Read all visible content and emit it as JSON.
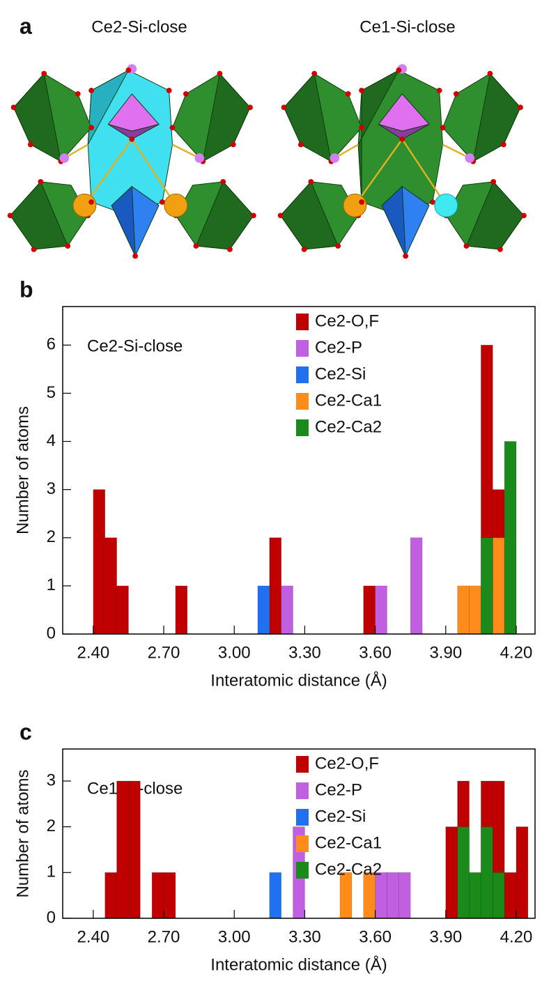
{
  "panel_a": {
    "label": "a",
    "titles": [
      "Ce2-Si-close",
      "Ce1-Si-close"
    ]
  },
  "chart_data": [
    {
      "type": "histogram",
      "panel_label": "b",
      "annotation": "Ce2-Si-close",
      "xlabel": "Interatomic distance (Å)",
      "ylabel": "Number of atoms",
      "bins": [
        2.35,
        2.4,
        2.45,
        2.5,
        2.55,
        2.6,
        2.65,
        2.7,
        2.75,
        2.8,
        2.85,
        2.9,
        2.95,
        3.0,
        3.05,
        3.1,
        3.15,
        3.2,
        3.25,
        3.3,
        3.35,
        3.4,
        3.45,
        3.5,
        3.55,
        3.6,
        3.65,
        3.7,
        3.75,
        3.8,
        3.85,
        3.9,
        3.95,
        4.0,
        4.05,
        4.1,
        4.15,
        4.2,
        4.25
      ],
      "series": [
        {
          "name": "Ce2-O,F",
          "color": "#c00000",
          "values": [
            0,
            3,
            2,
            1,
            0,
            0,
            0,
            0,
            1,
            0,
            0,
            0,
            0,
            0,
            0,
            0,
            2,
            0,
            0,
            0,
            0,
            0,
            0,
            0,
            1,
            0,
            0,
            0,
            0,
            0,
            0,
            0,
            0,
            0,
            6,
            3,
            0,
            0
          ]
        },
        {
          "name": "Ce2-P",
          "color": "#c060e0",
          "values": [
            0,
            0,
            0,
            0,
            0,
            0,
            0,
            0,
            0,
            0,
            0,
            0,
            0,
            0,
            0,
            0,
            0,
            1,
            0,
            0,
            0,
            0,
            0,
            0,
            0,
            1,
            0,
            0,
            2,
            0,
            0,
            0,
            0,
            0,
            0,
            0,
            0,
            0
          ]
        },
        {
          "name": "Ce2-Si",
          "color": "#2070f0",
          "values": [
            0,
            0,
            0,
            0,
            0,
            0,
            0,
            0,
            0,
            0,
            0,
            0,
            0,
            0,
            0,
            1,
            0,
            0,
            0,
            0,
            0,
            0,
            0,
            0,
            0,
            0,
            0,
            0,
            0,
            0,
            0,
            0,
            0,
            0,
            0,
            0,
            0,
            0
          ]
        },
        {
          "name": "Ce2-Ca1",
          "color": "#ff8c1a",
          "values": [
            0,
            0,
            0,
            0,
            0,
            0,
            0,
            0,
            0,
            0,
            0,
            0,
            0,
            0,
            0,
            0,
            0,
            0,
            0,
            0,
            0,
            0,
            0,
            0,
            0,
            0,
            0,
            0,
            0,
            0,
            0,
            0,
            1,
            1,
            0,
            2,
            0,
            0
          ]
        },
        {
          "name": "Ce2-Ca2",
          "color": "#1a8a1a",
          "values": [
            0,
            0,
            0,
            0,
            0,
            0,
            0,
            0,
            0,
            0,
            0,
            0,
            0,
            0,
            0,
            0,
            0,
            0,
            0,
            0,
            0,
            0,
            0,
            0,
            0,
            0,
            0,
            0,
            0,
            0,
            0,
            0,
            0,
            0,
            2,
            0,
            4,
            0
          ]
        }
      ],
      "xlim": [
        2.27,
        4.28
      ],
      "ylim": [
        0,
        6.8
      ],
      "xticks": [
        {
          "value": 2.4,
          "label": "2.40"
        },
        {
          "value": 2.7,
          "label": "2.70"
        },
        {
          "value": 3.0,
          "label": "3.00"
        },
        {
          "value": 3.3,
          "label": "3.30"
        },
        {
          "value": 3.6,
          "label": "3.60"
        },
        {
          "value": 3.9,
          "label": "3.90"
        },
        {
          "value": 4.2,
          "label": "4.20"
        }
      ],
      "yticks": [
        0,
        1,
        2,
        3,
        4,
        5,
        6
      ],
      "legend": "upper center"
    },
    {
      "type": "histogram",
      "panel_label": "c",
      "annotation": "Ce1-Si-close",
      "xlabel": "Interatomic distance (Å)",
      "ylabel": "Number of atoms",
      "bins": [
        2.35,
        2.4,
        2.45,
        2.5,
        2.55,
        2.6,
        2.65,
        2.7,
        2.75,
        2.8,
        2.85,
        2.9,
        2.95,
        3.0,
        3.05,
        3.1,
        3.15,
        3.2,
        3.25,
        3.3,
        3.35,
        3.4,
        3.45,
        3.5,
        3.55,
        3.6,
        3.65,
        3.7,
        3.75,
        3.8,
        3.85,
        3.9,
        3.95,
        4.0,
        4.05,
        4.1,
        4.15,
        4.2,
        4.25
      ],
      "series": [
        {
          "name": "Ce2-O,F",
          "color": "#c00000",
          "values": [
            0,
            0,
            1,
            3,
            3,
            0,
            1,
            1,
            0,
            0,
            0,
            0,
            0,
            0,
            0,
            0,
            0,
            0,
            0,
            0,
            0,
            0,
            0,
            0,
            0,
            0,
            0,
            0,
            0,
            0,
            0,
            2,
            3,
            0,
            3,
            3,
            1,
            2
          ]
        },
        {
          "name": "Ce2-P",
          "color": "#c060e0",
          "values": [
            0,
            0,
            0,
            0,
            0,
            0,
            0,
            0,
            0,
            0,
            0,
            0,
            0,
            0,
            0,
            0,
            0,
            0,
            2,
            0,
            0,
            0,
            0,
            0,
            0,
            1,
            1,
            1,
            0,
            0,
            0,
            0,
            0,
            0,
            0,
            0,
            0,
            0
          ]
        },
        {
          "name": "Ce2-Si",
          "color": "#2070f0",
          "values": [
            0,
            0,
            0,
            0,
            0,
            0,
            0,
            0,
            0,
            0,
            0,
            0,
            0,
            0,
            0,
            0,
            1,
            0,
            0,
            0,
            0,
            0,
            0,
            0,
            0,
            0,
            0,
            0,
            0,
            0,
            0,
            0,
            0,
            0,
            0,
            0,
            0,
            0
          ]
        },
        {
          "name": "Ce2-Ca1",
          "color": "#ff8c1a",
          "values": [
            0,
            0,
            0,
            0,
            0,
            0,
            0,
            0,
            0,
            0,
            0,
            0,
            0,
            0,
            0,
            0,
            0,
            0,
            0,
            0,
            0,
            0,
            1,
            0,
            1,
            0,
            0,
            0,
            0,
            0,
            0,
            0,
            0,
            0,
            0,
            0,
            0,
            0
          ]
        },
        {
          "name": "Ce2-Ca2",
          "color": "#1a8a1a",
          "values": [
            0,
            0,
            0,
            0,
            0,
            0,
            0,
            0,
            0,
            0,
            0,
            0,
            0,
            0,
            0,
            0,
            0,
            0,
            0,
            0,
            0,
            0,
            0,
            0,
            0,
            0,
            0,
            0,
            0,
            0,
            0,
            0,
            2,
            1,
            2,
            1,
            0,
            0
          ]
        }
      ],
      "xlim": [
        2.27,
        4.28
      ],
      "ylim": [
        0,
        3.7
      ],
      "xticks": [
        {
          "value": 2.4,
          "label": "2.40"
        },
        {
          "value": 2.7,
          "label": "2.70"
        },
        {
          "value": 3.0,
          "label": "3.00"
        },
        {
          "value": 3.3,
          "label": "3.30"
        },
        {
          "value": 3.6,
          "label": "3.60"
        },
        {
          "value": 3.9,
          "label": "3.90"
        },
        {
          "value": 4.2,
          "label": "4.20"
        }
      ],
      "yticks": [
        0,
        1,
        2,
        3
      ],
      "legend": "upper center"
    }
  ]
}
